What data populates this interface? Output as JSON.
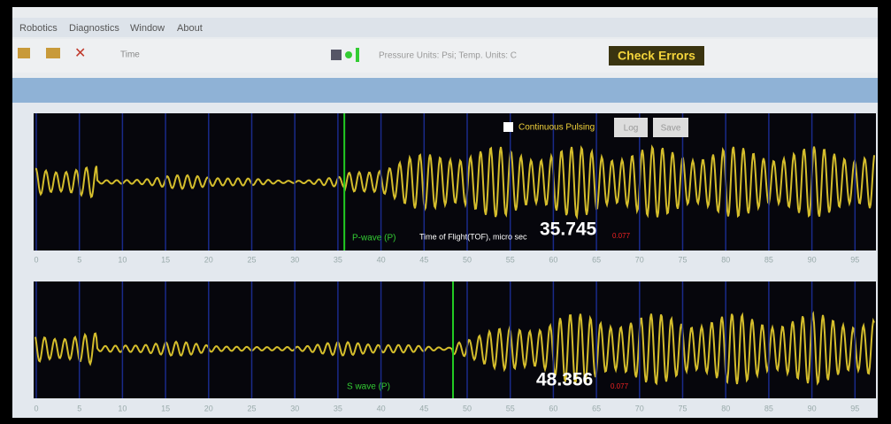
{
  "menu": [
    "Robotics",
    "Diagnostics",
    "Window",
    "About"
  ],
  "toolbar": {
    "time_label": "Time",
    "units": "Pressure Units: Psi; Temp. Units: C",
    "check_errors": "Check Errors"
  },
  "plots": [
    {
      "continuous_pulsing": "Continuous Pulsing",
      "log": "Log",
      "save": "Save",
      "wave_label": "P-wave (P)",
      "tof_label": "Time of Flight(TOF), micro sec",
      "tof": 35.745,
      "error": "0.077",
      "x_ticks": [
        0,
        5,
        10,
        15,
        20,
        25,
        30,
        35,
        40,
        45,
        50,
        55,
        60,
        65,
        70,
        75,
        80,
        85,
        90,
        95
      ]
    },
    {
      "wave_label": "S wave (P)",
      "tof": 48.356,
      "error": "0.077",
      "x_ticks": [
        0,
        5,
        10,
        15,
        20,
        25,
        30,
        35,
        40,
        45,
        50,
        55,
        60,
        65,
        70,
        75,
        80,
        85,
        90,
        95
      ]
    }
  ]
}
